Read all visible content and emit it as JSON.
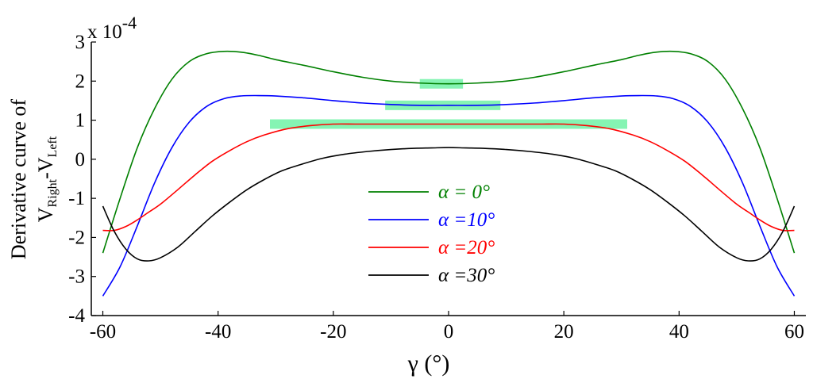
{
  "chart_data": {
    "type": "line",
    "title": "",
    "xlabel": "γ (°)",
    "ylabel_line1": "Derivative curve of",
    "ylabel_line2": {
      "v1": "V",
      "sub1": "Right",
      "dash": "-",
      "v2": "V",
      "sub2": "Left"
    },
    "exponent_label": {
      "base": "x 10",
      "exp": "-4"
    },
    "xlim": [
      -62,
      62
    ],
    "ylim": [
      -4,
      3
    ],
    "xticks": [
      -60,
      -40,
      -20,
      0,
      20,
      40,
      60
    ],
    "yticks": [
      -4,
      -3,
      -2,
      -1,
      0,
      1,
      2,
      3
    ],
    "grid": false,
    "legend_position": "center",
    "series": [
      {
        "name": "α = 0°",
        "color": "#008000",
        "x": [
          -60,
          -57,
          -54,
          -51,
          -48,
          -45,
          -42,
          -39,
          -36,
          -33,
          -30,
          -25,
          -20,
          -15,
          -10,
          -5,
          0,
          5,
          10,
          15,
          20,
          25,
          30,
          33,
          36,
          39,
          42,
          45,
          48,
          51,
          54,
          57,
          60
        ],
        "y": [
          -2.4,
          -1.0,
          0.3,
          1.3,
          2.05,
          2.5,
          2.7,
          2.76,
          2.74,
          2.66,
          2.55,
          2.4,
          2.24,
          2.1,
          2.0,
          1.95,
          1.93,
          1.95,
          2.0,
          2.1,
          2.24,
          2.4,
          2.55,
          2.66,
          2.74,
          2.76,
          2.7,
          2.5,
          2.05,
          1.3,
          0.3,
          -1.0,
          -2.4
        ]
      },
      {
        "name": "α =10°",
        "color": "#0000ff",
        "x": [
          -60,
          -57,
          -54,
          -51,
          -48,
          -45,
          -42,
          -39,
          -36,
          -33,
          -30,
          -25,
          -20,
          -15,
          -10,
          -5,
          0,
          5,
          10,
          15,
          20,
          25,
          30,
          33,
          36,
          39,
          42,
          45,
          48,
          51,
          54,
          57,
          60
        ],
        "y": [
          -3.5,
          -2.75,
          -1.7,
          -0.6,
          0.3,
          0.95,
          1.35,
          1.55,
          1.62,
          1.63,
          1.62,
          1.57,
          1.5,
          1.44,
          1.4,
          1.38,
          1.38,
          1.38,
          1.4,
          1.44,
          1.5,
          1.57,
          1.62,
          1.63,
          1.62,
          1.55,
          1.35,
          0.95,
          0.3,
          -0.6,
          -1.7,
          -2.75,
          -3.5
        ]
      },
      {
        "name": "α =20°",
        "color": "#ff0000",
        "x": [
          -60,
          -58,
          -56,
          -54,
          -52,
          -50,
          -47,
          -44,
          -41,
          -38,
          -35,
          -32,
          -28,
          -24,
          -20,
          -16,
          -12,
          -8,
          -4,
          0,
          4,
          8,
          12,
          16,
          20,
          24,
          28,
          32,
          35,
          38,
          41,
          44,
          47,
          50,
          52,
          54,
          56,
          58,
          60
        ],
        "y": [
          -1.82,
          -1.82,
          -1.72,
          -1.55,
          -1.35,
          -1.15,
          -0.78,
          -0.4,
          -0.05,
          0.22,
          0.45,
          0.62,
          0.78,
          0.86,
          0.9,
          0.9,
          0.9,
          0.9,
          0.9,
          0.9,
          0.9,
          0.9,
          0.9,
          0.9,
          0.9,
          0.86,
          0.78,
          0.62,
          0.45,
          0.22,
          -0.05,
          -0.4,
          -0.78,
          -1.15,
          -1.35,
          -1.55,
          -1.72,
          -1.82,
          -1.82
        ]
      },
      {
        "name": "α =30°",
        "color": "#000000",
        "x": [
          -60,
          -58,
          -56,
          -54,
          -52,
          -50,
          -47,
          -44,
          -41,
          -38,
          -35,
          -32,
          -29,
          -26,
          -22,
          -18,
          -14,
          -10,
          -6,
          -3,
          0,
          3,
          6,
          10,
          14,
          18,
          22,
          26,
          29,
          32,
          35,
          38,
          41,
          44,
          47,
          50,
          52,
          54,
          56,
          58,
          60
        ],
        "y": [
          -1.2,
          -1.85,
          -2.3,
          -2.55,
          -2.6,
          -2.52,
          -2.25,
          -1.85,
          -1.45,
          -1.1,
          -0.78,
          -0.52,
          -0.3,
          -0.15,
          0.02,
          0.13,
          0.2,
          0.25,
          0.28,
          0.29,
          0.3,
          0.29,
          0.28,
          0.25,
          0.2,
          0.13,
          0.02,
          -0.15,
          -0.3,
          -0.52,
          -0.78,
          -1.1,
          -1.45,
          -1.85,
          -2.25,
          -2.52,
          -2.6,
          -2.55,
          -2.3,
          -1.85,
          -1.2
        ]
      }
    ],
    "highlights": [
      {
        "x": [
          -5,
          2.5
        ],
        "y": 1.93,
        "color": "#5cf09a"
      },
      {
        "x": [
          -11,
          9
        ],
        "y": 1.38,
        "color": "#5cf09a"
      },
      {
        "x": [
          -31,
          31
        ],
        "y": 0.9,
        "color": "#5cf09a"
      }
    ]
  }
}
